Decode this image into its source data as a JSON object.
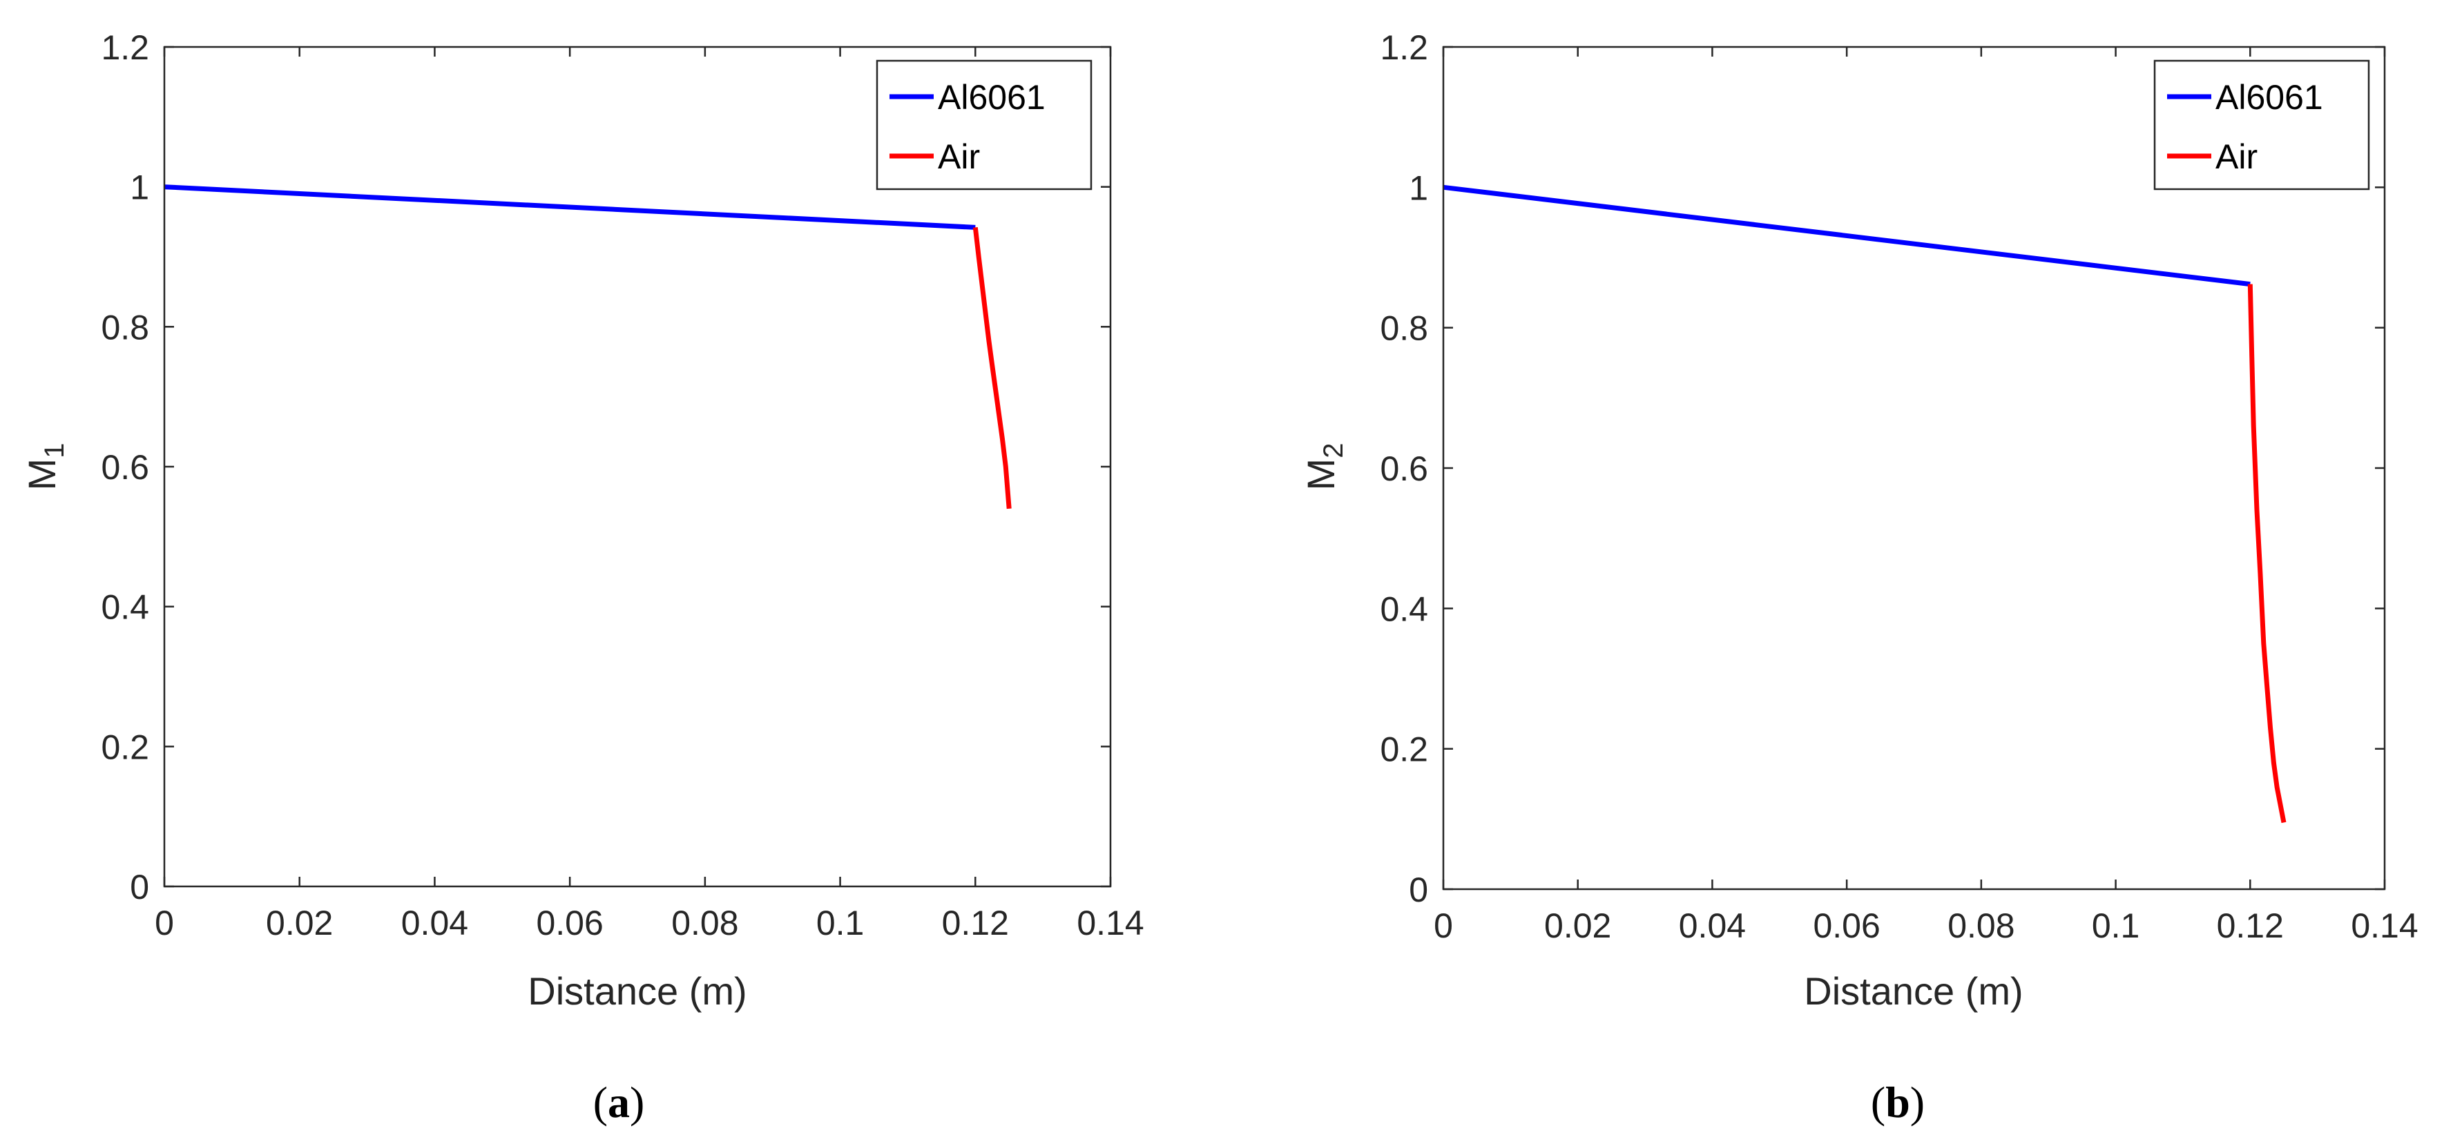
{
  "chart_data": [
    {
      "type": "line",
      "caption_letter": "a",
      "xlabel": "Distance (m)",
      "ylabel_main": "M",
      "ylabel_sub": "1",
      "xlim": [
        0,
        0.14
      ],
      "ylim": [
        0,
        1.2
      ],
      "xticks": [
        "0",
        "0.02",
        "0.04",
        "0.06",
        "0.08",
        "0.1",
        "0.12",
        "0.14"
      ],
      "yticks": [
        "0",
        "0.2",
        "0.4",
        "0.6",
        "0.8",
        "1",
        "1.2"
      ],
      "legend_position": "top-right",
      "series": [
        {
          "name": "Al6061",
          "color": "#0000ff",
          "x": [
            0,
            0.12
          ],
          "y": [
            1.0,
            0.942
          ]
        },
        {
          "name": "Air",
          "color": "#ff0000",
          "x": [
            0.12,
            0.1205,
            0.121,
            0.1215,
            0.122,
            0.1225,
            0.123,
            0.1235,
            0.124,
            0.1245,
            0.125
          ],
          "y": [
            0.942,
            0.9,
            0.86,
            0.82,
            0.78,
            0.745,
            0.71,
            0.675,
            0.64,
            0.6,
            0.54
          ]
        }
      ]
    },
    {
      "type": "line",
      "caption_letter": "b",
      "xlabel": "Distance (m)",
      "ylabel_main": "M",
      "ylabel_sub": "2",
      "xlim": [
        0,
        0.14
      ],
      "ylim": [
        0,
        1.2
      ],
      "xticks": [
        "0",
        "0.02",
        "0.04",
        "0.06",
        "0.08",
        "0.1",
        "0.12",
        "0.14"
      ],
      "yticks": [
        "0",
        "0.2",
        "0.4",
        "0.6",
        "0.8",
        "1",
        "1.2"
      ],
      "legend_position": "top-right",
      "series": [
        {
          "name": "Al6061",
          "color": "#0000ff",
          "x": [
            0,
            0.12
          ],
          "y": [
            1.0,
            0.862
          ]
        },
        {
          "name": "Air",
          "color": "#ff0000",
          "x": [
            0.12,
            0.12025,
            0.1205,
            0.12075,
            0.121,
            0.1215,
            0.122,
            0.1225,
            0.123,
            0.1235,
            0.124,
            0.1245,
            0.125
          ],
          "y": [
            0.862,
            0.76,
            0.66,
            0.6,
            0.54,
            0.45,
            0.35,
            0.29,
            0.23,
            0.18,
            0.145,
            0.12,
            0.095
          ]
        }
      ]
    }
  ]
}
